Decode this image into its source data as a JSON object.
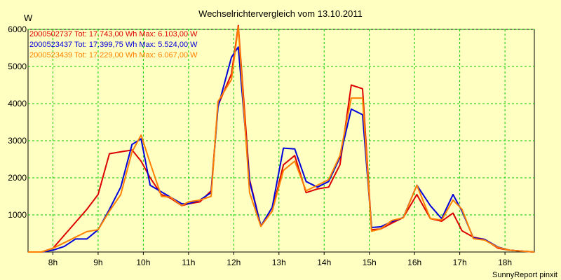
{
  "chart_data": {
    "type": "line",
    "title": "Wechselrichtervergleich vom 13.10.2011",
    "ylabel": "W",
    "xlabel": "",
    "ylim": [
      0,
      6000
    ],
    "xlim": [
      7.45,
      18.65
    ],
    "yticks": [
      1000,
      2000,
      3000,
      4000,
      5000,
      6000
    ],
    "ytick_labels": [
      "1000",
      "2000",
      "3000",
      "4000",
      "5000",
      "6000"
    ],
    "xticks": [
      8,
      9,
      10,
      11,
      12,
      13,
      14,
      15,
      16,
      17,
      18
    ],
    "xtick_labels": [
      "8h",
      "9h",
      "10h",
      "11h",
      "12h",
      "13h",
      "14h",
      "15h",
      "16h",
      "17h",
      "18h"
    ],
    "grid": true,
    "legend_position": "top-left",
    "credit": "SunnyReport pinxit",
    "series": [
      {
        "name": "2000502737",
        "label": "2000502737 Tot: 17.743,00 Wh Max: 6.103,00 W",
        "color": "#DD0000",
        "x": [
          7.45,
          7.75,
          8.0,
          8.25,
          8.5,
          8.75,
          9.0,
          9.25,
          9.5,
          9.75,
          9.95,
          10.15,
          10.4,
          10.6,
          10.85,
          11.0,
          11.25,
          11.5,
          11.65,
          11.95,
          12.1,
          12.35,
          12.6,
          12.85,
          13.1,
          13.35,
          13.6,
          13.85,
          14.1,
          14.35,
          14.6,
          14.85,
          15.05,
          15.25,
          15.5,
          15.75,
          16.05,
          16.35,
          16.6,
          16.85,
          17.05,
          17.3,
          17.55,
          17.85,
          18.1,
          18.4,
          18.65
        ],
        "y": [
          0,
          0,
          100,
          450,
          800,
          1150,
          1550,
          2650,
          2700,
          2750,
          2450,
          2000,
          1550,
          1450,
          1250,
          1300,
          1350,
          1650,
          3950,
          4800,
          6103,
          1950,
          700,
          1100,
          2350,
          2600,
          1600,
          1700,
          1750,
          2350,
          4500,
          4400,
          600,
          620,
          780,
          930,
          1550,
          900,
          830,
          1050,
          570,
          400,
          340,
          100,
          50,
          20,
          0
        ]
      },
      {
        "name": "2000523437",
        "label": "2000523437 Tot: 17.399,75 Wh Max: 5.524,00 W",
        "color": "#0000DD",
        "x": [
          7.45,
          7.75,
          8.0,
          8.25,
          8.5,
          8.75,
          9.0,
          9.25,
          9.5,
          9.75,
          9.95,
          10.15,
          10.4,
          10.6,
          10.85,
          11.0,
          11.25,
          11.5,
          11.65,
          11.95,
          12.1,
          12.35,
          12.6,
          12.85,
          13.1,
          13.35,
          13.6,
          13.85,
          14.1,
          14.35,
          14.6,
          14.85,
          15.05,
          15.25,
          15.5,
          15.75,
          16.05,
          16.35,
          16.6,
          16.85,
          17.05,
          17.3,
          17.55,
          17.85,
          18.1,
          18.4,
          18.65
        ],
        "y": [
          0,
          0,
          50,
          150,
          350,
          350,
          600,
          1150,
          1750,
          2900,
          3050,
          1800,
          1620,
          1480,
          1300,
          1300,
          1400,
          1600,
          3900,
          5250,
          5524,
          1900,
          700,
          1200,
          2800,
          2780,
          1900,
          1750,
          1900,
          2550,
          3850,
          3700,
          660,
          680,
          820,
          930,
          1800,
          1250,
          900,
          1550,
          1100,
          380,
          340,
          130,
          50,
          20,
          0
        ]
      },
      {
        "name": "2000523439",
        "label": "2000523439 Tot: 17.229,00 Wh Max: 6.067,00 W",
        "color": "#FF8000",
        "x": [
          7.45,
          7.75,
          8.0,
          8.25,
          8.5,
          8.75,
          9.0,
          9.25,
          9.5,
          9.75,
          9.95,
          10.15,
          10.4,
          10.6,
          10.85,
          11.0,
          11.25,
          11.5,
          11.65,
          11.95,
          12.1,
          12.35,
          12.6,
          12.85,
          13.1,
          13.35,
          13.6,
          13.85,
          14.1,
          14.35,
          14.6,
          14.85,
          15.05,
          15.25,
          15.5,
          15.75,
          16.05,
          16.35,
          16.6,
          16.85,
          17.05,
          17.3,
          17.55,
          17.85,
          18.1,
          18.4,
          18.65
        ],
        "y": [
          0,
          0,
          100,
          250,
          400,
          550,
          600,
          1100,
          1550,
          2700,
          3150,
          2400,
          1500,
          1480,
          1250,
          1350,
          1400,
          1500,
          4050,
          4650,
          6067,
          1600,
          690,
          1100,
          2200,
          2450,
          1650,
          1800,
          1950,
          2600,
          4150,
          4150,
          560,
          620,
          850,
          920,
          1800,
          900,
          860,
          1400,
          1150,
          360,
          320,
          120,
          50,
          20,
          0
        ]
      }
    ]
  }
}
